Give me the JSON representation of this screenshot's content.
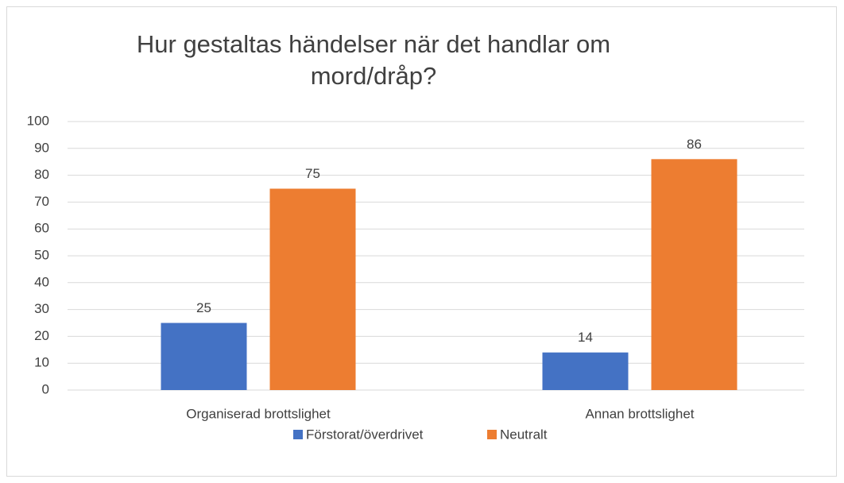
{
  "chart_data": {
    "type": "bar",
    "title": "Hur gestaltas händelser när det handlar om mord/dråp?",
    "categories": [
      "Organiserad brottslighet",
      "Annan brottslighet"
    ],
    "series": [
      {
        "name": "Förstorat/överdrivet",
        "color": "#4472c4",
        "values": [
          25,
          14
        ]
      },
      {
        "name": "Neutralt",
        "color": "#ed7d31",
        "values": [
          75,
          86
        ]
      }
    ],
    "ylim": [
      0,
      100
    ],
    "yticks": [
      0,
      10,
      20,
      30,
      40,
      50,
      60,
      70,
      80,
      90,
      100
    ],
    "grid": true,
    "legend": "bottom"
  }
}
